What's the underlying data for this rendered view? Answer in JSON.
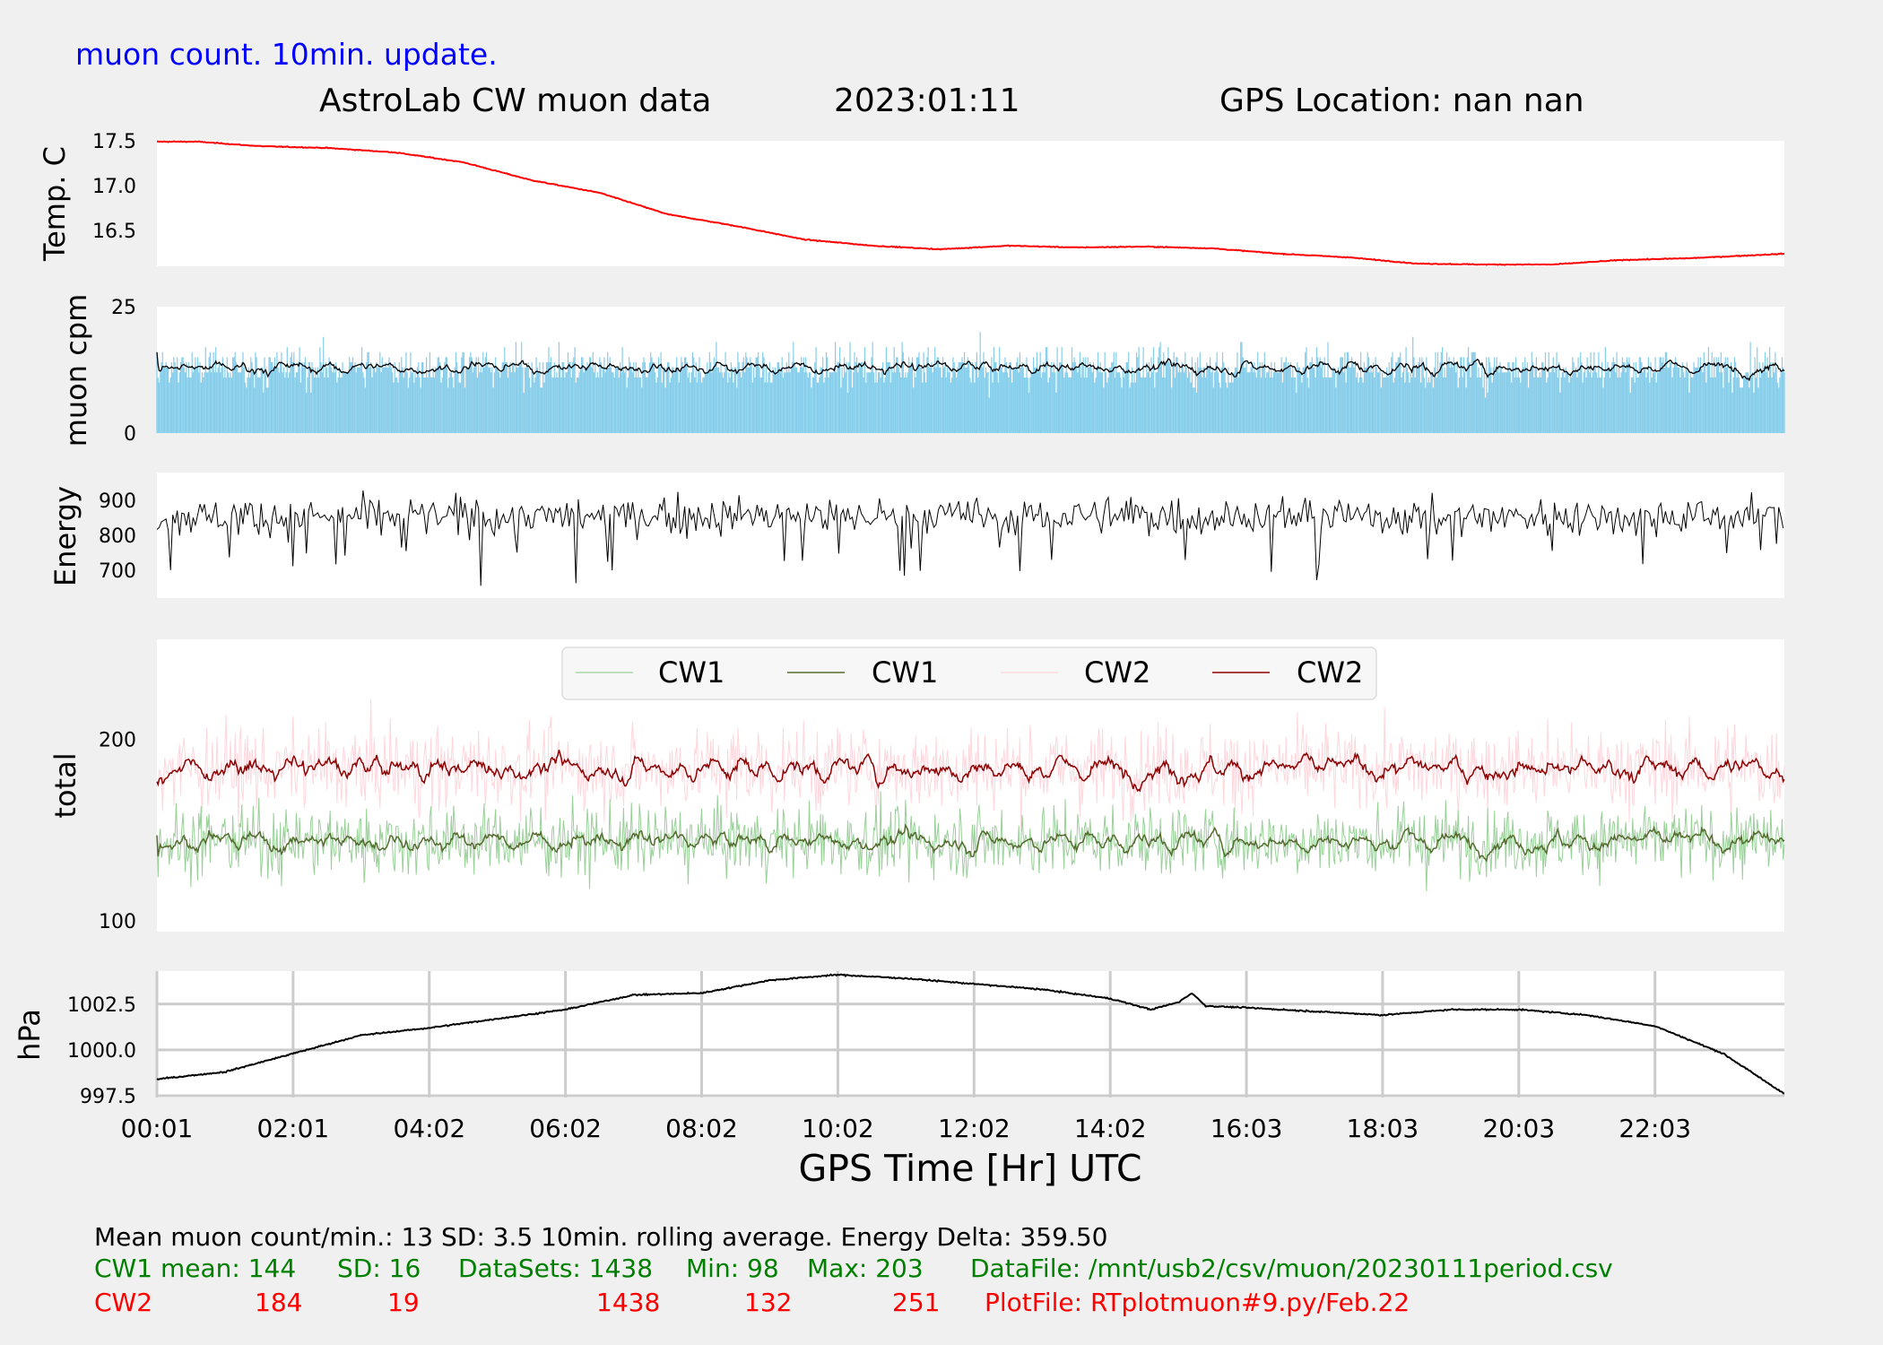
{
  "header": {
    "update_note": "muon count.  10min. update.",
    "title": "AstroLab CW muon data",
    "date": "2023:01:11",
    "location": "GPS Location: nan   nan"
  },
  "colors": {
    "temperature": "#ff0000",
    "muon_bars": "#87ceeb",
    "muon_avg": "#000000",
    "energy": "#000000",
    "cw1_raw": "#98d098",
    "cw1_avg": "#556b2f",
    "cw2_raw": "#ffd6dc",
    "cw2_avg": "#8b0000",
    "pressure": "#000000",
    "footer_black": "#000000",
    "footer_green": "#008000",
    "footer_red": "#ff0000",
    "note_blue": "#0000ff"
  },
  "chart_data": [
    {
      "id": "temperature",
      "type": "line",
      "ylabel": "Temp. C",
      "yticks": [
        16.5,
        17.0,
        17.5
      ],
      "ylim": [
        16.1,
        17.5
      ],
      "grid": false,
      "profile_x_hours": [
        0,
        0.6,
        1.5,
        2.5,
        3.5,
        4.5,
        5.5,
        6.5,
        7.5,
        8.5,
        9.5,
        10.5,
        11.5,
        12.5,
        13.5,
        14.5,
        15.5,
        16.5,
        17.5,
        18.5,
        19.5,
        20.5,
        21.5,
        22.5,
        23.9
      ],
      "profile_y": [
        17.49,
        17.49,
        17.44,
        17.42,
        17.37,
        17.26,
        17.06,
        16.92,
        16.68,
        16.55,
        16.4,
        16.33,
        16.29,
        16.33,
        16.31,
        16.32,
        16.3,
        16.24,
        16.2,
        16.13,
        16.12,
        16.12,
        16.17,
        16.19,
        16.24
      ]
    },
    {
      "id": "muon_cpm",
      "type": "bar+line",
      "ylabel": "muon cpm",
      "yticks": [
        0,
        25
      ],
      "ylim": [
        0,
        25
      ],
      "grid": false,
      "mean": 13,
      "sd": 3.5,
      "rolling_average_min": 10
    },
    {
      "id": "energy",
      "type": "line",
      "ylabel": "Energy",
      "yticks": [
        700,
        800,
        900
      ],
      "ylim": [
        620,
        980
      ],
      "grid": false,
      "center": 855,
      "spread": 45
    },
    {
      "id": "total",
      "type": "line",
      "ylabel": "total",
      "yticks": [
        100,
        200
      ],
      "ylim": [
        94,
        255
      ],
      "grid": false,
      "legend_position": "top-center",
      "series": [
        {
          "name": "CW1",
          "role": "raw",
          "mean": 144,
          "sd": 16,
          "min": 98,
          "max": 203
        },
        {
          "name": "CW1",
          "role": "rolling-average",
          "mean": 144
        },
        {
          "name": "CW2",
          "role": "raw",
          "mean": 184,
          "sd": 19,
          "min": 132,
          "max": 251
        },
        {
          "name": "CW2",
          "role": "rolling-average",
          "mean": 184
        }
      ]
    },
    {
      "id": "pressure",
      "type": "line",
      "ylabel": "hPa",
      "yticks": [
        997.5,
        1000.0,
        1002.5
      ],
      "ylim": [
        997.4,
        1004.3
      ],
      "grid": true,
      "profile_x_hours": [
        0,
        1,
        2,
        3,
        4,
        5,
        6,
        7,
        8,
        9,
        10,
        11,
        12,
        13,
        14,
        14.6,
        15.0,
        15.2,
        15.4,
        16,
        17,
        18,
        19,
        20,
        21,
        22,
        23,
        23.9
      ],
      "profile_y": [
        998.4,
        998.8,
        999.8,
        1000.8,
        1001.2,
        1001.7,
        1002.2,
        1003.0,
        1003.1,
        1003.8,
        1004.1,
        1003.9,
        1003.6,
        1003.3,
        1002.8,
        1002.2,
        1002.6,
        1003.1,
        1002.4,
        1002.3,
        1002.1,
        1001.9,
        1002.2,
        1002.2,
        1001.9,
        1001.3,
        999.8,
        997.6
      ],
      "xlabel": "GPS Time  [Hr] UTC",
      "xticks": [
        "00:01",
        "02:01",
        "04:02",
        "06:02",
        "08:02",
        "10:02",
        "12:02",
        "14:02",
        "16:03",
        "18:03",
        "20:03",
        "22:03"
      ],
      "xlim_hours": [
        0,
        23.9
      ]
    }
  ],
  "footer": {
    "line1": "Mean muon count/min.: 13  SD: 3.5   10min. rolling average.    Energy Delta:  359.50",
    "cw1": {
      "label": "CW1 mean: 144",
      "sd": "SD: 16",
      "datasets": "DataSets: 1438",
      "min": "Min: 98",
      "max": "Max: 203",
      "file": "DataFile: /mnt/usb2/csv/muon/20230111period.csv"
    },
    "cw2": {
      "label": "CW2",
      "mean": "184",
      "sd": "19",
      "datasets": "1438",
      "min": "132",
      "max": "251",
      "file": "PlotFile: RTplotmuon#9.py/Feb.22"
    }
  }
}
